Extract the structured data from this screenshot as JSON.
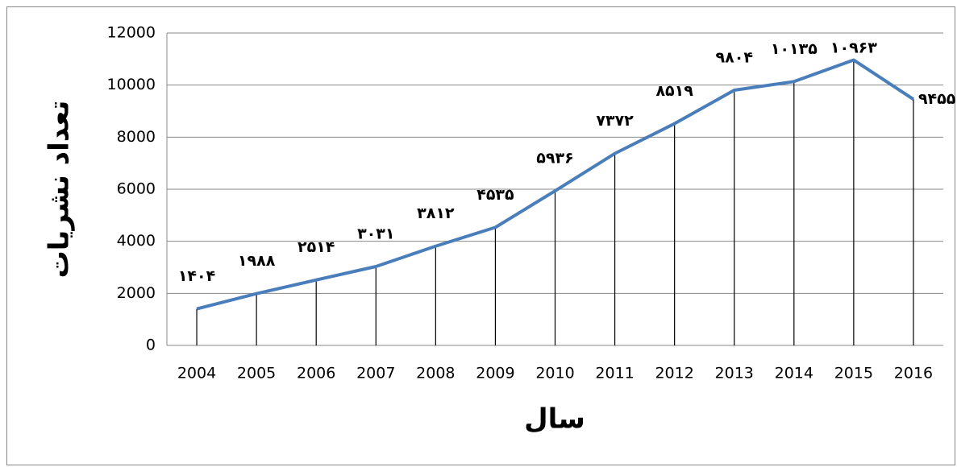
{
  "chart_data": {
    "type": "line",
    "categories": [
      "2004",
      "2005",
      "2006",
      "2007",
      "2008",
      "2009",
      "2010",
      "2011",
      "2012",
      "2013",
      "2014",
      "2015",
      "2016"
    ],
    "values": [
      1404,
      1988,
      2514,
      3031,
      3812,
      4535,
      5936,
      7372,
      8519,
      9804,
      10135,
      10963,
      9455
    ],
    "value_labels": [
      "۱۴۰۴",
      "۱۹۸۸",
      "۲۵۱۴",
      "۳۰۳۱",
      "۳۸۱۲",
      "۴۵۳۵",
      "۵۹۳۶",
      "۷۳۷۲",
      "۸۵۱۹",
      "۹۸۰۴",
      "۱۰۱۳۵",
      "۱۰۹۶۳",
      "۹۴۵۵"
    ],
    "color": "#4a7ebb",
    "x_label": "سال",
    "y_label": "تعداد نشریات",
    "ylim": [
      0,
      12000
    ],
    "yticks": [
      0,
      2000,
      4000,
      6000,
      8000,
      10000,
      12000
    ],
    "grid": true,
    "drop_lines": true
  }
}
